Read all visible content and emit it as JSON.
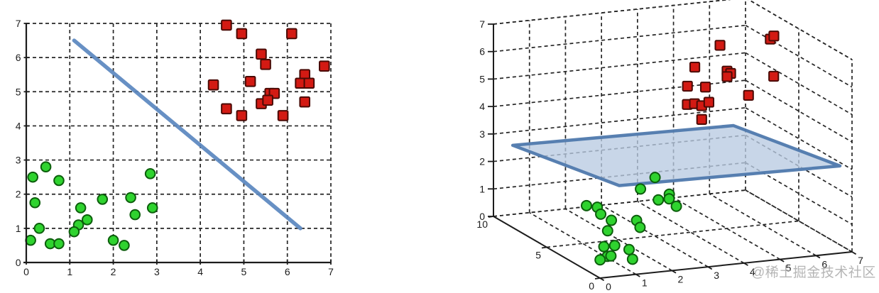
{
  "watermark": {
    "text": "@稀土掘金技术社区"
  },
  "colors": {
    "green_fill": "#2fd32f",
    "green_stroke": "#0c5e0c",
    "red_fill": "#d31a13",
    "red_stroke": "#4a0a05",
    "line_blue": "#5b87c0",
    "plane_fill": "#b9cbe2",
    "plane_stroke": "#4f79ad",
    "grid": "#262626",
    "axis": "#1c1c1c",
    "label": "#1c1c1c",
    "watermark_gray": "#a9a9a9"
  },
  "chart_data": [
    {
      "id": "svm-2d",
      "type": "scatter",
      "title": "",
      "xlabel": "",
      "ylabel": "",
      "xlim": [
        0,
        7
      ],
      "ylim": [
        0,
        7
      ],
      "xticks": [
        0,
        1,
        2,
        3,
        4,
        5,
        6,
        7
      ],
      "yticks": [
        0,
        1,
        2,
        3,
        4,
        5,
        6,
        7
      ],
      "grid": "dashed",
      "legend": "none",
      "series": [
        {
          "name": "green-circles-class",
          "marker": "circle",
          "points": [
            [
              0.45,
              2.8
            ],
            [
              0.15,
              2.5
            ],
            [
              0.75,
              2.4
            ],
            [
              0.2,
              1.75
            ],
            [
              1.75,
              1.85
            ],
            [
              2.4,
              1.9
            ],
            [
              1.25,
              1.6
            ],
            [
              2.85,
              2.6
            ],
            [
              2.9,
              1.6
            ],
            [
              2.5,
              1.4
            ],
            [
              1.4,
              1.25
            ],
            [
              1.2,
              1.1
            ],
            [
              0.3,
              1.0
            ],
            [
              1.1,
              0.9
            ],
            [
              0.1,
              0.65
            ],
            [
              0.55,
              0.55
            ],
            [
              0.75,
              0.55
            ],
            [
              2.0,
              0.65
            ],
            [
              2.25,
              0.5
            ]
          ]
        },
        {
          "name": "red-squares-class",
          "marker": "square",
          "points": [
            [
              4.6,
              6.95
            ],
            [
              4.95,
              6.7
            ],
            [
              6.1,
              6.7
            ],
            [
              5.4,
              6.1
            ],
            [
              5.5,
              5.8
            ],
            [
              6.85,
              5.75
            ],
            [
              6.4,
              5.5
            ],
            [
              6.3,
              5.25
            ],
            [
              6.5,
              5.25
            ],
            [
              4.3,
              5.2
            ],
            [
              5.15,
              5.3
            ],
            [
              5.6,
              4.95
            ],
            [
              5.7,
              4.95
            ],
            [
              5.4,
              4.65
            ],
            [
              5.55,
              4.75
            ],
            [
              6.4,
              4.7
            ],
            [
              4.6,
              4.5
            ],
            [
              4.95,
              4.3
            ],
            [
              5.9,
              4.3
            ]
          ]
        }
      ],
      "separator_line": {
        "from": [
          1.1,
          6.5
        ],
        "to": [
          6.3,
          1.0
        ]
      }
    },
    {
      "id": "svm-3d",
      "type": "scatter3d",
      "title": "",
      "xlim": [
        0,
        7
      ],
      "ylim": [
        0,
        10
      ],
      "zlim": [
        0,
        7
      ],
      "xticks": [
        0,
        1,
        2,
        3,
        4,
        5,
        6,
        7
      ],
      "yticks": [
        0,
        5,
        10
      ],
      "zticks": [
        0,
        1,
        2,
        3,
        4,
        5,
        6,
        7
      ],
      "grid": "dashed",
      "legend": "none",
      "series": [
        {
          "name": "green-circles-class",
          "marker": "circle",
          "points": [
            [
              3.6,
              7,
              1.6
            ],
            [
              2.9,
              6,
              1.5
            ],
            [
              3.7,
              6,
              1.2
            ],
            [
              3.1,
              5,
              1.3
            ],
            [
              3.4,
              5,
              1.3
            ],
            [
              3.6,
              5,
              1.0
            ],
            [
              1.4,
              6,
              1.1
            ],
            [
              1.7,
              6,
              1.0
            ],
            [
              1.5,
              5,
              1.0
            ],
            [
              1.5,
              4,
              1.0
            ],
            [
              2.2,
              4,
              0.9
            ],
            [
              2.0,
              3,
              0.9
            ],
            [
              1.1,
              3,
              0.9
            ],
            [
              1.0,
              2,
              0.6
            ],
            [
              0.7,
              2,
              0.6
            ],
            [
              0.5,
              1,
              0.5
            ],
            [
              0.3,
              1,
              0.4
            ],
            [
              0.6,
              1,
              0.5
            ],
            [
              1.4,
              2,
              0.4
            ],
            [
              1.2,
              1,
              0.3
            ]
          ]
        },
        {
          "name": "red-squares-class",
          "marker": "square",
          "points": [
            [
              5.7,
              8,
              5.9
            ],
            [
              6.8,
              7,
              6.2
            ],
            [
              6.9,
              7,
              6.3
            ],
            [
              5.0,
              8,
              5.2
            ],
            [
              5.6,
              7,
              5.2
            ],
            [
              5.7,
              7,
              5.1
            ],
            [
              5.6,
              7,
              5.0
            ],
            [
              6.6,
              6,
              5.1
            ],
            [
              4.5,
              7,
              4.8
            ],
            [
              5.0,
              7,
              4.7
            ],
            [
              5.9,
              6,
              4.5
            ],
            [
              4.2,
              6,
              4.4
            ],
            [
              4.4,
              6,
              4.4
            ],
            [
              4.6,
              6,
              4.3
            ],
            [
              4.8,
              6,
              4.4
            ],
            [
              4.6,
              6,
              3.8
            ]
          ]
        }
      ],
      "separating_plane": {
        "corners": [
          [
            0.24,
            9,
            2.78
          ],
          [
            6.37,
            9,
            2.66
          ],
          [
            6.37,
            -1,
            3.44
          ],
          [
            0.24,
            -1,
            3.56
          ]
        ]
      }
    }
  ]
}
